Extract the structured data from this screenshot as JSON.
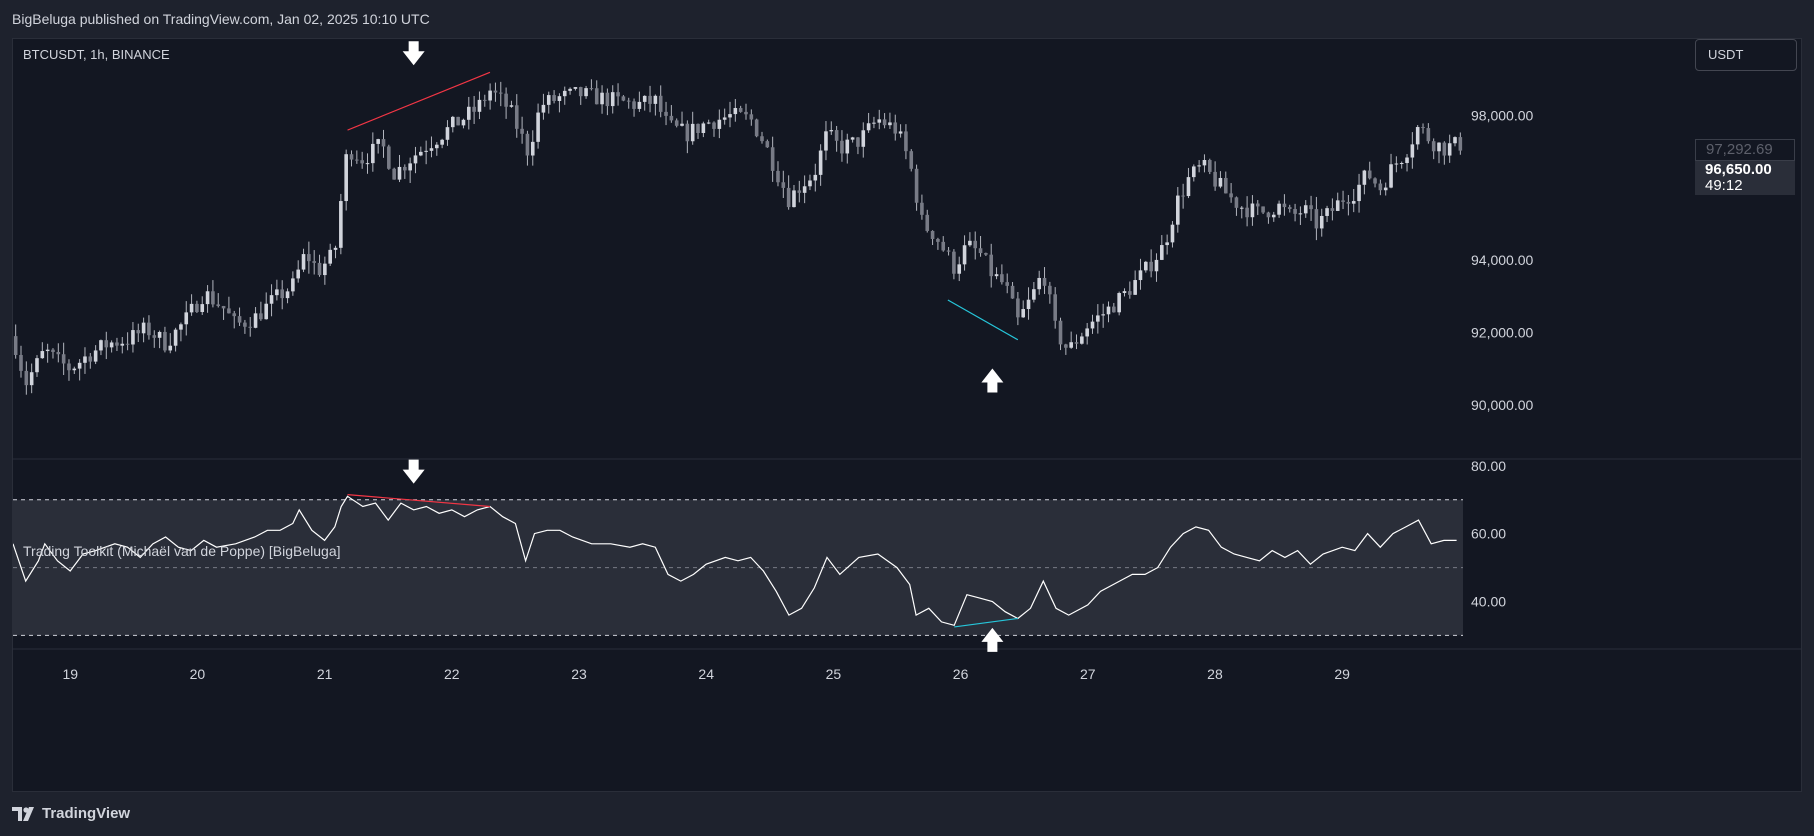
{
  "header": {
    "publish_text": "BigBeluga published on TradingView.com, Jan 02, 2025 10:10 UTC"
  },
  "chart": {
    "symbol_info": "BTCUSDT, 1h, BINANCE",
    "currency_label": "USDT",
    "last_price": "96,650.00",
    "countdown": "49:12",
    "ghost_price": "97,292.69",
    "indicator_title": "Trading Toolkit (Michaël van de Poppe) [BigBeluga]"
  },
  "footer": {
    "brand": "TradingView"
  },
  "colors": {
    "bearish_divergence": "#f23645",
    "bullish_divergence": "#26c6da",
    "arrow": "#ffffff",
    "candle": "#b2b5be",
    "rsi_line": "#ffffff",
    "rsi_band": "#2a2e39"
  },
  "chart_data": [
    {
      "type": "candlestick",
      "title": "BTCUSDT, 1h, BINANCE",
      "y_unit": "USDT",
      "ylim": [
        88500,
        99900
      ],
      "y_ticks": [
        90000,
        92000,
        94000,
        96000,
        98000
      ],
      "y_tick_labels": [
        "90,000.00",
        "92,000.00",
        "94,000.00",
        "",
        "98,000.00"
      ],
      "x_ticks": [
        19,
        20,
        21,
        22,
        23,
        24,
        25,
        26,
        27,
        28,
        29
      ],
      "x_range": [
        18.55,
        29.95
      ],
      "close_path": [
        [
          18.55,
          91900
        ],
        [
          18.65,
          90600
        ],
        [
          18.8,
          91500
        ],
        [
          18.9,
          91200
        ],
        [
          19.0,
          91000
        ],
        [
          19.15,
          91400
        ],
        [
          19.3,
          91700
        ],
        [
          19.45,
          91800
        ],
        [
          19.6,
          92100
        ],
        [
          19.75,
          91700
        ],
        [
          19.9,
          92300
        ],
        [
          20.05,
          93100
        ],
        [
          20.2,
          92700
        ],
        [
          20.3,
          92200
        ],
        [
          20.45,
          92400
        ],
        [
          20.6,
          92900
        ],
        [
          20.75,
          93300
        ],
        [
          20.85,
          94200
        ],
        [
          20.95,
          93700
        ],
        [
          21.0,
          93900
        ],
        [
          21.08,
          94200
        ],
        [
          21.13,
          95700
        ],
        [
          21.18,
          97100
        ],
        [
          21.3,
          96800
        ],
        [
          21.45,
          97200
        ],
        [
          21.55,
          96400
        ],
        [
          21.7,
          96900
        ],
        [
          21.85,
          97300
        ],
        [
          22.0,
          97700
        ],
        [
          22.2,
          98200
        ],
        [
          22.3,
          98700
        ],
        [
          22.45,
          98200
        ],
        [
          22.6,
          97000
        ],
        [
          22.7,
          98300
        ],
        [
          22.85,
          98500
        ],
        [
          23.0,
          98600
        ],
        [
          23.15,
          98500
        ],
        [
          23.3,
          98400
        ],
        [
          23.45,
          98300
        ],
        [
          23.6,
          98400
        ],
        [
          23.7,
          97700
        ],
        [
          23.85,
          97500
        ],
        [
          24.0,
          97800
        ],
        [
          24.2,
          98000
        ],
        [
          24.35,
          97900
        ],
        [
          24.45,
          97300
        ],
        [
          24.55,
          96500
        ],
        [
          24.65,
          95700
        ],
        [
          24.75,
          96100
        ],
        [
          24.85,
          96400
        ],
        [
          24.95,
          97500
        ],
        [
          25.05,
          97100
        ],
        [
          25.2,
          97300
        ],
        [
          25.35,
          97900
        ],
        [
          25.5,
          97600
        ],
        [
          25.6,
          96700
        ],
        [
          25.7,
          95000
        ],
        [
          25.8,
          94700
        ],
        [
          25.95,
          93800
        ],
        [
          26.05,
          94400
        ],
        [
          26.15,
          94200
        ],
        [
          26.25,
          93600
        ],
        [
          26.35,
          93300
        ],
        [
          26.45,
          92300
        ],
        [
          26.55,
          92900
        ],
        [
          26.65,
          93700
        ],
        [
          26.75,
          92000
        ],
        [
          26.85,
          91500
        ],
        [
          27.0,
          92200
        ],
        [
          27.15,
          92600
        ],
        [
          27.3,
          93100
        ],
        [
          27.45,
          93700
        ],
        [
          27.6,
          94400
        ],
        [
          27.7,
          95600
        ],
        [
          27.8,
          96300
        ],
        [
          27.9,
          96600
        ],
        [
          28.0,
          96200
        ],
        [
          28.1,
          95800
        ],
        [
          28.2,
          95500
        ],
        [
          28.35,
          95300
        ],
        [
          28.5,
          95500
        ],
        [
          28.6,
          95200
        ],
        [
          28.7,
          95400
        ],
        [
          28.8,
          95000
        ],
        [
          28.9,
          95300
        ],
        [
          29.0,
          95700
        ],
        [
          29.1,
          95900
        ],
        [
          29.2,
          96400
        ],
        [
          29.3,
          96000
        ],
        [
          29.4,
          96600
        ],
        [
          29.5,
          97000
        ],
        [
          29.6,
          97700
        ],
        [
          29.7,
          97300
        ],
        [
          29.8,
          97100
        ],
        [
          29.9,
          97200
        ]
      ],
      "annotations": [
        {
          "kind": "divergence-line",
          "signal": "bearish",
          "from": [
            21.18,
            97600
          ],
          "to": [
            22.3,
            99200
          ]
        },
        {
          "kind": "divergence-line",
          "signal": "bullish",
          "from": [
            25.9,
            92900
          ],
          "to": [
            26.45,
            91800
          ]
        },
        {
          "kind": "arrow",
          "direction": "down",
          "x": 21.7,
          "y": 99700
        },
        {
          "kind": "arrow",
          "direction": "up",
          "x": 26.25,
          "y": 90700
        }
      ]
    },
    {
      "type": "line",
      "title": "Trading Toolkit (Michaël van de Poppe) [BigBeluga]",
      "ylim": [
        26,
        82
      ],
      "y_ticks": [
        40,
        60,
        80
      ],
      "y_tick_labels": [
        "40.00",
        "60.00",
        "80.00"
      ],
      "levels": [
        30,
        50,
        70
      ],
      "band": [
        30,
        70
      ],
      "x_range": [
        18.55,
        29.95
      ],
      "series": [
        {
          "values": [
            [
              18.55,
              57
            ],
            [
              18.65,
              46
            ],
            [
              18.75,
              52
            ],
            [
              18.8,
              57
            ],
            [
              18.9,
              52
            ],
            [
              19.0,
              49
            ],
            [
              19.1,
              54
            ],
            [
              19.2,
              55
            ],
            [
              19.35,
              57
            ],
            [
              19.45,
              56
            ],
            [
              19.55,
              53
            ],
            [
              19.65,
              57
            ],
            [
              19.75,
              59
            ],
            [
              19.85,
              56
            ],
            [
              19.95,
              55
            ],
            [
              20.05,
              58
            ],
            [
              20.15,
              56
            ],
            [
              20.3,
              57
            ],
            [
              20.45,
              59
            ],
            [
              20.55,
              61
            ],
            [
              20.65,
              61
            ],
            [
              20.75,
              63
            ],
            [
              20.8,
              67
            ],
            [
              20.9,
              61
            ],
            [
              21.0,
              58
            ],
            [
              21.08,
              62
            ],
            [
              21.13,
              68
            ],
            [
              21.18,
              71
            ],
            [
              21.3,
              68
            ],
            [
              21.4,
              69
            ],
            [
              21.5,
              64
            ],
            [
              21.6,
              69
            ],
            [
              21.7,
              67
            ],
            [
              21.8,
              68
            ],
            [
              21.9,
              66
            ],
            [
              22.0,
              67
            ],
            [
              22.1,
              65
            ],
            [
              22.2,
              67
            ],
            [
              22.3,
              68
            ],
            [
              22.4,
              65
            ],
            [
              22.5,
              63
            ],
            [
              22.58,
              52
            ],
            [
              22.65,
              60
            ],
            [
              22.75,
              61
            ],
            [
              22.85,
              61
            ],
            [
              22.95,
              59
            ],
            [
              23.1,
              57
            ],
            [
              23.25,
              57
            ],
            [
              23.4,
              56
            ],
            [
              23.5,
              57
            ],
            [
              23.6,
              56
            ],
            [
              23.7,
              48
            ],
            [
              23.8,
              46
            ],
            [
              23.9,
              48
            ],
            [
              24.0,
              51
            ],
            [
              24.15,
              53
            ],
            [
              24.25,
              52
            ],
            [
              24.35,
              53
            ],
            [
              24.45,
              49
            ],
            [
              24.55,
              43
            ],
            [
              24.65,
              36
            ],
            [
              24.75,
              38
            ],
            [
              24.85,
              44
            ],
            [
              24.95,
              53
            ],
            [
              25.05,
              48
            ],
            [
              25.2,
              53
            ],
            [
              25.35,
              54
            ],
            [
              25.5,
              50
            ],
            [
              25.6,
              45
            ],
            [
              25.65,
              36
            ],
            [
              25.75,
              38
            ],
            [
              25.85,
              34
            ],
            [
              25.95,
              33
            ],
            [
              26.05,
              42
            ],
            [
              26.15,
              41
            ],
            [
              26.25,
              40
            ],
            [
              26.35,
              37
            ],
            [
              26.45,
              35
            ],
            [
              26.55,
              38
            ],
            [
              26.65,
              46
            ],
            [
              26.75,
              38
            ],
            [
              26.85,
              36
            ],
            [
              27.0,
              39
            ],
            [
              27.1,
              43
            ],
            [
              27.25,
              46
            ],
            [
              27.35,
              48
            ],
            [
              27.45,
              48
            ],
            [
              27.55,
              50
            ],
            [
              27.65,
              56
            ],
            [
              27.75,
              60
            ],
            [
              27.85,
              62
            ],
            [
              27.95,
              61
            ],
            [
              28.05,
              56
            ],
            [
              28.15,
              54
            ],
            [
              28.25,
              53
            ],
            [
              28.35,
              52
            ],
            [
              28.45,
              55
            ],
            [
              28.55,
              53
            ],
            [
              28.65,
              55
            ],
            [
              28.75,
              51
            ],
            [
              28.85,
              54
            ],
            [
              29.0,
              56
            ],
            [
              29.1,
              55
            ],
            [
              29.2,
              60
            ],
            [
              29.3,
              56
            ],
            [
              29.4,
              60
            ],
            [
              29.5,
              62
            ],
            [
              29.6,
              64
            ],
            [
              29.7,
              57
            ],
            [
              29.8,
              58
            ],
            [
              29.9,
              58
            ]
          ]
        }
      ],
      "annotations": [
        {
          "kind": "divergence-line",
          "signal": "bearish",
          "from": [
            21.18,
            71.5
          ],
          "to": [
            22.3,
            68
          ]
        },
        {
          "kind": "divergence-line",
          "signal": "bullish",
          "from": [
            25.95,
            32.5
          ],
          "to": [
            26.45,
            35
          ]
        },
        {
          "kind": "arrow",
          "direction": "down",
          "x": 21.7,
          "y": 78
        },
        {
          "kind": "arrow",
          "direction": "up",
          "x": 26.25,
          "y": 29
        }
      ]
    }
  ]
}
